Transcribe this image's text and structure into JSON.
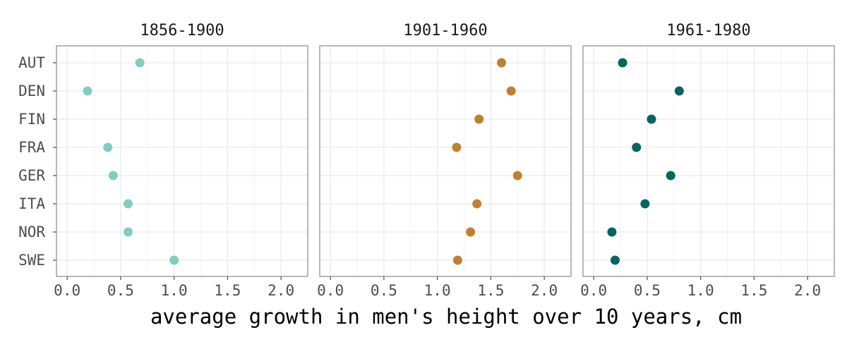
{
  "chart_data": {
    "type": "scatter",
    "xlabel": "average growth in men's height over 10 years, cm",
    "ylabel": "",
    "xlim": [
      -0.1,
      2.25
    ],
    "x_ticks": [
      "0.0",
      "0.5",
      "1.0",
      "1.5",
      "2.0"
    ],
    "x_tick_values": [
      0.0,
      0.5,
      1.0,
      1.5,
      2.0
    ],
    "categories": [
      "AUT",
      "DEN",
      "FIN",
      "FRA",
      "GER",
      "ITA",
      "NOR",
      "SWE"
    ],
    "grid": true,
    "legend": "none",
    "panels": [
      {
        "title": "1856-1900",
        "color": "#80cdc1",
        "values": [
          0.68,
          0.19,
          null,
          0.38,
          0.43,
          0.57,
          0.57,
          1.0
        ]
      },
      {
        "title": "1901-1960",
        "color": "#bf812d",
        "values": [
          1.6,
          1.69,
          1.39,
          1.18,
          1.75,
          1.37,
          1.31,
          1.19
        ]
      },
      {
        "title": "1961-1980",
        "color": "#01665e",
        "values": [
          0.27,
          0.8,
          0.54,
          0.4,
          0.72,
          0.48,
          0.17,
          0.2
        ]
      }
    ]
  }
}
